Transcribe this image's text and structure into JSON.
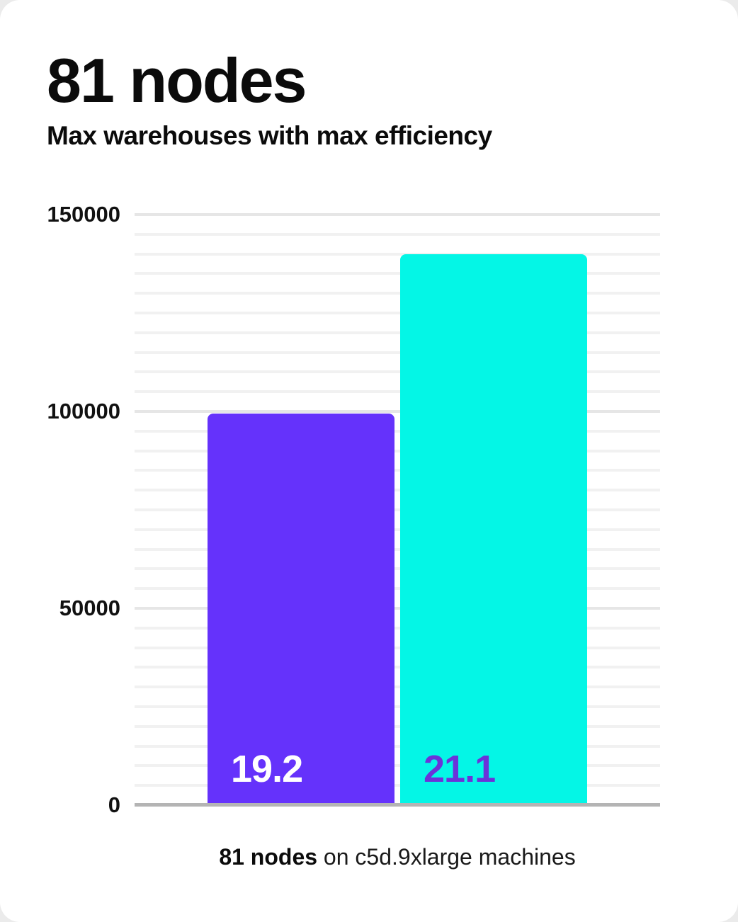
{
  "header": {
    "title": "81 nodes",
    "subtitle": "Max warehouses with max efficiency"
  },
  "caption": {
    "highlight": "81 nodes",
    "text": " on c5d.9xlarge machines"
  },
  "chart_data": {
    "type": "bar",
    "title": "81 nodes",
    "subtitle": "Max warehouses with max efficiency",
    "categories": [
      "19.2",
      "21.1"
    ],
    "values": [
      99500,
      140000
    ],
    "bar_labels": [
      "19.2",
      "21.1"
    ],
    "xlabel": "",
    "ylabel": "",
    "ylim": [
      0,
      150000
    ],
    "yticks": [
      {
        "value": 0,
        "label": "0"
      },
      {
        "value": 50000,
        "label": "50000"
      },
      {
        "value": 100000,
        "label": "100000"
      },
      {
        "value": 150000,
        "label": "150000"
      }
    ],
    "grid": {
      "shown": true,
      "minor_step": 5000,
      "major_step": 50000
    },
    "legend_position": "none",
    "bar_colors": [
      "#6532fb",
      "#04f6e6"
    ],
    "bar_label_colors": [
      "#ffffff",
      "#6b33d9"
    ],
    "caption": "81 nodes on c5d.9xlarge machines"
  },
  "colors": {
    "accent_purple": "#6532fb",
    "accent_cyan": "#04f6e6",
    "axis_line": "#b4b4b4",
    "grid_minor": "#f1f1f1",
    "grid_major": "#e6e6e6",
    "text": "#0b0b0b",
    "card_background": "#ffffff"
  }
}
